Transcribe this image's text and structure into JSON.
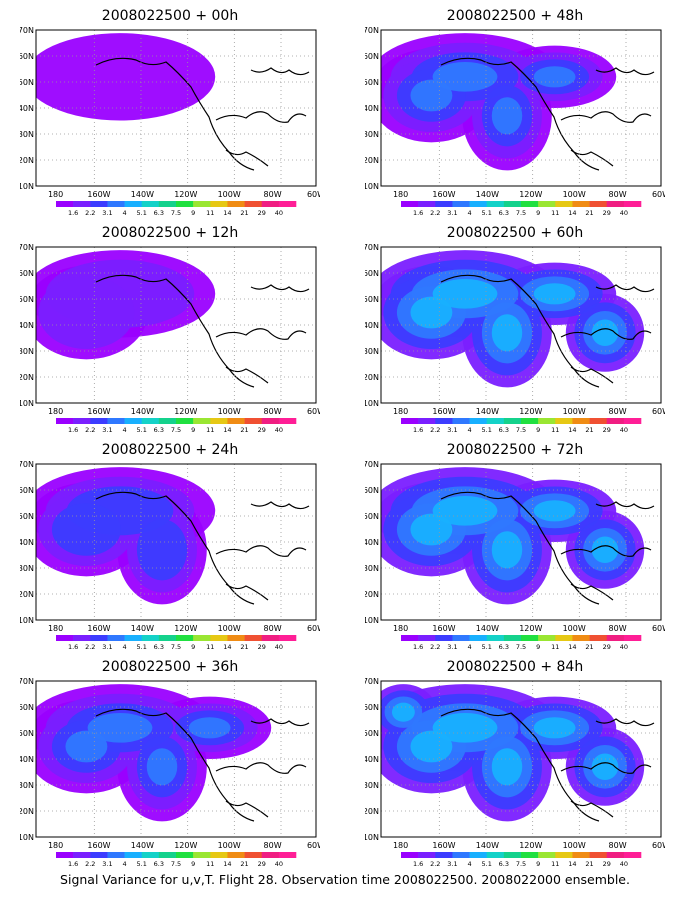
{
  "panels": [
    {
      "title": "2008022500 + 00h"
    },
    {
      "title": "2008022500 + 48h"
    },
    {
      "title": "2008022500 + 12h"
    },
    {
      "title": "2008022500 + 60h"
    },
    {
      "title": "2008022500 + 24h"
    },
    {
      "title": "2008022500 + 72h"
    },
    {
      "title": "2008022500 + 36h"
    },
    {
      "title": "2008022500 + 84h"
    }
  ],
  "axes": {
    "lat_labels": [
      "70N",
      "60N",
      "50N",
      "40N",
      "30N",
      "20N",
      "10N"
    ],
    "lon_labels": [
      "180",
      "160W",
      "140W",
      "120W",
      "100W",
      "80W",
      "60W"
    ]
  },
  "colorbar": {
    "labels": [
      "1.6",
      "2.2",
      "3.1",
      "4",
      "5.1",
      "6.3",
      "7.5",
      "9",
      "11",
      "14",
      "21",
      "29",
      "40"
    ],
    "colors": [
      "#9a00ff",
      "#7a1fff",
      "#3c3cff",
      "#2f78ff",
      "#18b0ff",
      "#14d2c8",
      "#14d28c",
      "#20e040",
      "#9ae632",
      "#e6c814",
      "#f08c14",
      "#f05032",
      "#f01e82",
      "#ff1e96"
    ]
  },
  "caption": "Signal Variance for u,v,T. Flight 28. Observation time 2008022500. 2008022000 ensemble."
}
